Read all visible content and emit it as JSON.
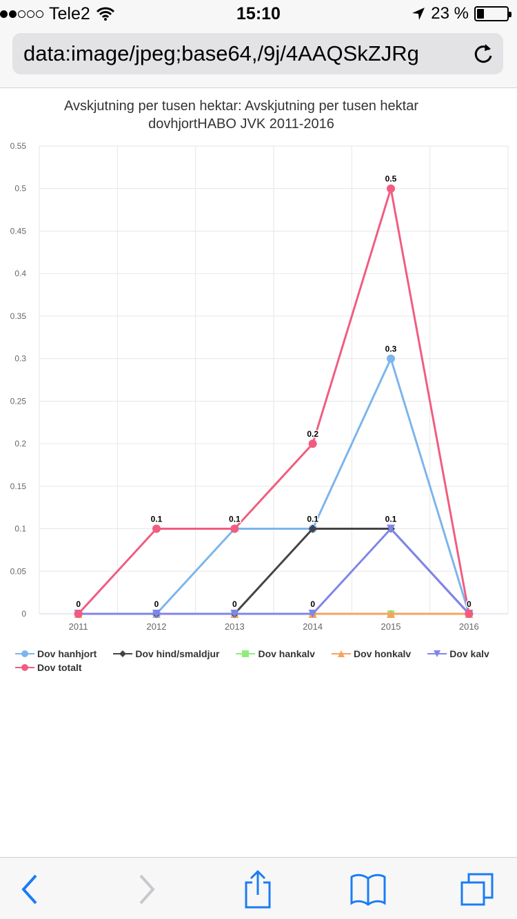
{
  "status_bar": {
    "carrier": "Tele2",
    "time": "15:10",
    "battery_percent": "23 %",
    "icons": [
      "signal-dots",
      "wifi-icon",
      "location-arrow-icon",
      "battery-icon"
    ]
  },
  "address_bar": {
    "url": "data:image/jpeg;base64,/9j/4AAQSkZJRg",
    "reload_icon": "reload-icon"
  },
  "chart": {
    "title_line1": "Avskjutning per tusen hektar: Avskjutning per tusen hektar",
    "title_line2": "dovhjortHABO JVK 2011-2016"
  },
  "chart_data": {
    "type": "line",
    "title": "Avskjutning per tusen hektar: Avskjutning per tusen hektar dovhjortHABO JVK 2011-2016",
    "categories": [
      "2011",
      "2012",
      "2013",
      "2014",
      "2015",
      "2016"
    ],
    "ylim": [
      0,
      0.55
    ],
    "yticks": [
      "0",
      "0.05",
      "0.1",
      "0.15",
      "0.2",
      "0.25",
      "0.3",
      "0.35",
      "0.4",
      "0.45",
      "0.5",
      "0.55"
    ],
    "grid": true,
    "legend_position": "bottom",
    "series": [
      {
        "name": "Dov hanhjort",
        "color": "#7cb5ec",
        "marker": "circle",
        "values": [
          0,
          0,
          0.1,
          0.1,
          0.3,
          0
        ]
      },
      {
        "name": "Dov hind/smaldjur",
        "color": "#434348",
        "marker": "diamond",
        "values": [
          0,
          0,
          0,
          0.1,
          0.1,
          0
        ]
      },
      {
        "name": "Dov hankalv",
        "color": "#90ed7d",
        "marker": "square",
        "values": [
          0,
          0,
          0,
          0,
          0,
          0
        ]
      },
      {
        "name": "Dov honkalv",
        "color": "#f7a35c",
        "marker": "triangle",
        "values": [
          0,
          0,
          0,
          0,
          0,
          0
        ]
      },
      {
        "name": "Dov kalv",
        "color": "#8085e9",
        "marker": "triangle-down",
        "values": [
          0,
          0,
          0,
          0,
          0.1,
          0
        ]
      },
      {
        "name": "Dov totalt",
        "color": "#f15c80",
        "marker": "circle",
        "values": [
          0,
          0.1,
          0.1,
          0.2,
          0.5,
          0
        ]
      }
    ],
    "data_labels": [
      {
        "x": "2011",
        "text": "0"
      },
      {
        "x": "2012",
        "text": "0.1"
      },
      {
        "x": "2012",
        "text": "0"
      },
      {
        "x": "2013",
        "text": "0.1"
      },
      {
        "x": "2013",
        "text": "0"
      },
      {
        "x": "2014",
        "text": "0.2"
      },
      {
        "x": "2014",
        "text": "0.1"
      },
      {
        "x": "2014",
        "text": "0"
      },
      {
        "x": "2015",
        "text": "0.5"
      },
      {
        "x": "2015",
        "text": "0.3"
      },
      {
        "x": "2015",
        "text": "0.1"
      },
      {
        "x": "2016",
        "text": "0"
      }
    ]
  },
  "toolbar": {
    "buttons": [
      "back-icon",
      "forward-icon",
      "share-icon",
      "bookmarks-icon",
      "tabs-icon"
    ]
  }
}
